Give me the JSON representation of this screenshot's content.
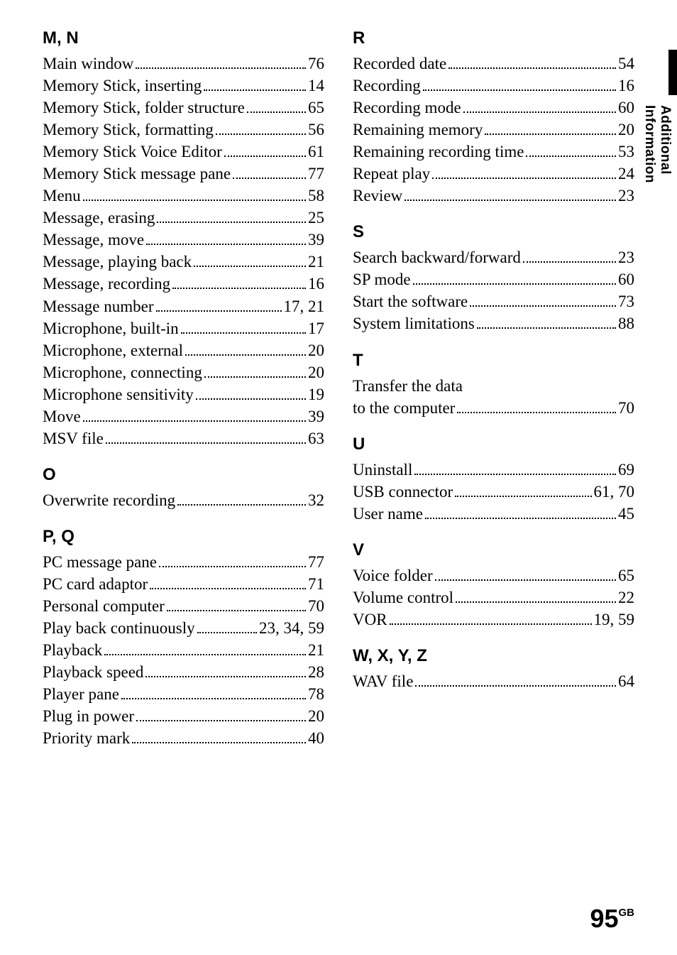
{
  "side_tab_label": "Additional Information",
  "page_number": "95",
  "page_region": "GB",
  "colors": {
    "text": "#000000",
    "background": "#ffffff"
  },
  "typography": {
    "body_font": "Georgia, Times New Roman, serif",
    "heading_font": "Arial, Helvetica, sans-serif",
    "body_size_pt": 17,
    "heading_size_pt": 18
  },
  "left_sections": [
    {
      "heading": "M, N",
      "entries": [
        {
          "text": "Main window",
          "page": "76"
        },
        {
          "text": "Memory Stick, inserting",
          "page": "14"
        },
        {
          "text": "Memory Stick, folder structure",
          "page": "65"
        },
        {
          "text": "Memory Stick, formatting",
          "page": "56"
        },
        {
          "text": "Memory Stick Voice Editor",
          "page": "61"
        },
        {
          "text": "Memory Stick message pane",
          "page": "77"
        },
        {
          "text": "Menu",
          "page": "58"
        },
        {
          "text": "Message, erasing",
          "page": "25"
        },
        {
          "text": "Message, move",
          "page": "39"
        },
        {
          "text": "Message, playing back",
          "page": "21"
        },
        {
          "text": "Message, recording",
          "page": "16"
        },
        {
          "text": "Message number",
          "page": "17, 21"
        },
        {
          "text": "Microphone, built-in",
          "page": "17"
        },
        {
          "text": "Microphone, external",
          "page": "20"
        },
        {
          "text": "Microphone, connecting",
          "page": "20"
        },
        {
          "text": "Microphone sensitivity",
          "page": "19"
        },
        {
          "text": "Move",
          "page": "39"
        },
        {
          "text": "MSV file",
          "page": "63"
        }
      ]
    },
    {
      "heading": "O",
      "entries": [
        {
          "text": "Overwrite recording",
          "page": "32"
        }
      ]
    },
    {
      "heading": "P, Q",
      "entries": [
        {
          "text": "PC message pane",
          "page": "77"
        },
        {
          "text": "PC card adaptor",
          "page": "71"
        },
        {
          "text": "Personal computer",
          "page": "70"
        },
        {
          "text": "Play back continuously",
          "page": "23, 34, 59"
        },
        {
          "text": "Playback",
          "page": "21"
        },
        {
          "text": "Playback speed",
          "page": "28"
        },
        {
          "text": "Player pane",
          "page": "78"
        },
        {
          "text": "Plug in power",
          "page": "20"
        },
        {
          "text": "Priority mark",
          "page": "40"
        }
      ]
    }
  ],
  "right_sections": [
    {
      "heading": "R",
      "entries": [
        {
          "text": "Recorded date",
          "page": "54"
        },
        {
          "text": "Recording",
          "page": "16"
        },
        {
          "text": "Recording mode",
          "page": "60"
        },
        {
          "text": "Remaining memory",
          "page": "20"
        },
        {
          "text": "Remaining recording time",
          "page": "53"
        },
        {
          "text": "Repeat play",
          "page": "24"
        },
        {
          "text": "Review",
          "page": "23"
        }
      ]
    },
    {
      "heading": "S",
      "entries": [
        {
          "text": "Search backward/forward",
          "page": "23"
        },
        {
          "text": "SP mode",
          "page": "60"
        },
        {
          "text": "Start the software",
          "page": "73"
        },
        {
          "text": "System limitations",
          "page": "88"
        }
      ]
    },
    {
      "heading": "T",
      "wrap_entry": {
        "line1": "Transfer the data",
        "line2": "to the computer",
        "page": "70"
      }
    },
    {
      "heading": "U",
      "entries": [
        {
          "text": "Uninstall",
          "page": "69"
        },
        {
          "text": "USB connector",
          "page": "61, 70"
        },
        {
          "text": "User name",
          "page": "45"
        }
      ]
    },
    {
      "heading": "V",
      "entries": [
        {
          "text": "Voice folder",
          "page": "65"
        },
        {
          "text": "Volume control",
          "page": "22"
        },
        {
          "text": "VOR",
          "page": "19, 59"
        }
      ]
    },
    {
      "heading": "W, X, Y, Z",
      "entries": [
        {
          "text": "WAV file",
          "page": "64"
        }
      ]
    }
  ]
}
